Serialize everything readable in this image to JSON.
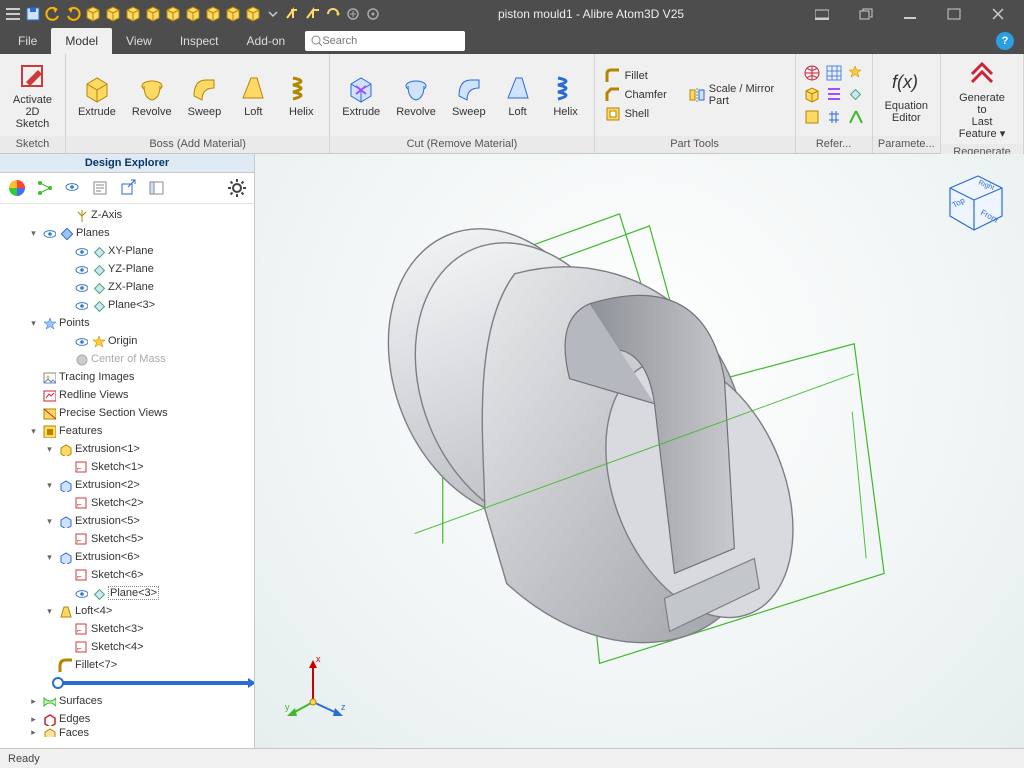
{
  "colors": {
    "titlebar_bg": "#4d4d4d",
    "ribbon_bg": "#f0f0f0",
    "accent_yellow": "#ffd966",
    "accent_yellow_dark": "#d4a800",
    "accent_blue": "#4a86e8",
    "accent_purple": "#a64dff",
    "accent_red": "#cc0000",
    "tree_line": "#999999",
    "plane_green": "#3fba2a",
    "viewport_bg_start": "#ffffff",
    "viewport_bg_end": "#e6eeee"
  },
  "window": {
    "title": "piston mould1 - Alibre Atom3D V25"
  },
  "menu": {
    "tabs": [
      "File",
      "Model",
      "View",
      "Inspect",
      "Add-on"
    ],
    "active_index": 1,
    "search_placeholder": "Search"
  },
  "ribbon": {
    "groups": [
      {
        "label": "Sketch",
        "layout": "big",
        "items": [
          {
            "name": "activate-2d-sketch",
            "label": "Activate\n2D Sketch",
            "icon": "sketch"
          }
        ]
      },
      {
        "label": "Boss (Add Material)",
        "layout": "big",
        "items": [
          {
            "name": "boss-extrude",
            "label": "Extrude",
            "icon": "extrude-yellow"
          },
          {
            "name": "boss-revolve",
            "label": "Revolve",
            "icon": "revolve-yellow"
          },
          {
            "name": "boss-sweep",
            "label": "Sweep",
            "icon": "sweep-yellow"
          },
          {
            "name": "boss-loft",
            "label": "Loft",
            "icon": "loft-yellow"
          },
          {
            "name": "boss-helix",
            "label": "Helix",
            "icon": "helix-yellow"
          }
        ]
      },
      {
        "label": "Cut (Remove Material)",
        "layout": "big",
        "items": [
          {
            "name": "cut-extrude",
            "label": "Extrude",
            "icon": "extrude-blue"
          },
          {
            "name": "cut-revolve",
            "label": "Revolve",
            "icon": "revolve-blue"
          },
          {
            "name": "cut-sweep",
            "label": "Sweep",
            "icon": "sweep-blue"
          },
          {
            "name": "cut-loft",
            "label": "Loft",
            "icon": "loft-blue"
          },
          {
            "name": "cut-helix",
            "label": "Helix",
            "icon": "helix-blue"
          }
        ]
      },
      {
        "label": "Part Tools",
        "layout": "partTools",
        "stack": [
          {
            "name": "fillet",
            "label": "Fillet",
            "icon": "fillet"
          },
          {
            "name": "chamfer",
            "label": "Chamfer",
            "icon": "chamfer"
          },
          {
            "name": "shell",
            "label": "Shell",
            "icon": "shell"
          }
        ],
        "stack2": [
          {
            "name": "scale-mirror",
            "label": "Scale / Mirror Part",
            "icon": "mirror"
          }
        ]
      },
      {
        "label": "Refer...",
        "layout": "minigrid",
        "mini": [
          "globe",
          "grid3",
          "star",
          "cube",
          "align",
          "plane",
          "box",
          "hash",
          "axis"
        ]
      },
      {
        "label": "Paramete...",
        "layout": "big",
        "items": [
          {
            "name": "equation-editor",
            "label": "Equation\nEditor",
            "icon": "fx"
          }
        ]
      },
      {
        "label": "Regenerate",
        "layout": "big",
        "items": [
          {
            "name": "generate-last",
            "label": "Generate to\nLast Feature ▾",
            "icon": "regen"
          }
        ]
      }
    ]
  },
  "design_explorer": {
    "title": "Design Explorer",
    "tree": [
      {
        "d": 3,
        "exp": "",
        "icons": [
          "axis-y"
        ],
        "label": "Z-Axis"
      },
      {
        "d": 1,
        "exp": "v",
        "icons": [
          "eye",
          "diamond-blue"
        ],
        "label": "Planes"
      },
      {
        "d": 3,
        "exp": "",
        "icons": [
          "eye",
          "diamond"
        ],
        "label": "XY-Plane"
      },
      {
        "d": 3,
        "exp": "",
        "icons": [
          "eye",
          "diamond"
        ],
        "label": "YZ-Plane"
      },
      {
        "d": 3,
        "exp": "",
        "icons": [
          "eye",
          "diamond"
        ],
        "label": "ZX-Plane"
      },
      {
        "d": 3,
        "exp": "",
        "icons": [
          "eye",
          "diamond"
        ],
        "label": "Plane<3>"
      },
      {
        "d": 1,
        "exp": "v",
        "icons": [
          "star-blue"
        ],
        "label": "Points"
      },
      {
        "d": 3,
        "exp": "",
        "icons": [
          "eye",
          "star"
        ],
        "label": "Origin"
      },
      {
        "d": 3,
        "exp": "",
        "icons": [
          "sphere-grey"
        ],
        "label": "Center of Mass",
        "muted": true
      },
      {
        "d": 1,
        "exp": "",
        "icons": [
          "img"
        ],
        "label": "Tracing Images"
      },
      {
        "d": 1,
        "exp": "",
        "icons": [
          "redline"
        ],
        "label": "Redline Views"
      },
      {
        "d": 1,
        "exp": "",
        "icons": [
          "section"
        ],
        "label": "Precise Section Views"
      },
      {
        "d": 1,
        "exp": "v",
        "icons": [
          "features"
        ],
        "label": "Features"
      },
      {
        "d": 2,
        "exp": "v",
        "icons": [
          "extr-y"
        ],
        "label": "Extrusion<1>"
      },
      {
        "d": 3,
        "exp": "",
        "icons": [
          "sketch-r"
        ],
        "label": "Sketch<1>"
      },
      {
        "d": 2,
        "exp": "v",
        "icons": [
          "extr-b"
        ],
        "label": "Extrusion<2>"
      },
      {
        "d": 3,
        "exp": "",
        "icons": [
          "sketch-r"
        ],
        "label": "Sketch<2>"
      },
      {
        "d": 2,
        "exp": "v",
        "icons": [
          "extr-b"
        ],
        "label": "Extrusion<5>"
      },
      {
        "d": 3,
        "exp": "",
        "icons": [
          "sketch-r"
        ],
        "label": "Sketch<5>"
      },
      {
        "d": 2,
        "exp": "v",
        "icons": [
          "extr-b"
        ],
        "label": "Extrusion<6>"
      },
      {
        "d": 3,
        "exp": "",
        "icons": [
          "sketch-r"
        ],
        "label": "Sketch<6>"
      },
      {
        "d": 3,
        "exp": "",
        "icons": [
          "eye",
          "diamond"
        ],
        "label": "Plane<3>",
        "boxed": true
      },
      {
        "d": 2,
        "exp": "v",
        "icons": [
          "loft-y"
        ],
        "label": "Loft<4>"
      },
      {
        "d": 3,
        "exp": "",
        "icons": [
          "sketch-r"
        ],
        "label": "Sketch<3>"
      },
      {
        "d": 3,
        "exp": "",
        "icons": [
          "sketch-r"
        ],
        "label": "Sketch<4>"
      },
      {
        "d": 2,
        "exp": "",
        "icons": [
          "fillet-y"
        ],
        "label": "Fillet<7>"
      },
      {
        "d": 2,
        "exp": "",
        "icons": [
          "rollback"
        ],
        "label": "",
        "rollback": true
      },
      {
        "d": 1,
        "exp": ">",
        "icons": [
          "surf"
        ],
        "label": "Surfaces"
      },
      {
        "d": 1,
        "exp": ">",
        "icons": [
          "edges"
        ],
        "label": "Edges"
      },
      {
        "d": 1,
        "exp": ">",
        "icons": [
          "faces"
        ],
        "label": "Faces",
        "cut": true
      }
    ]
  },
  "viewport": {
    "viewcube": {
      "faces": [
        "Right",
        "Top",
        "Front"
      ]
    },
    "axis_labels": [
      "x",
      "y",
      "z"
    ],
    "axis_colors": {
      "x": "#cc0000",
      "y": "#3fba2a",
      "z": "#2b6bd4"
    }
  },
  "status": {
    "text": "Ready"
  }
}
